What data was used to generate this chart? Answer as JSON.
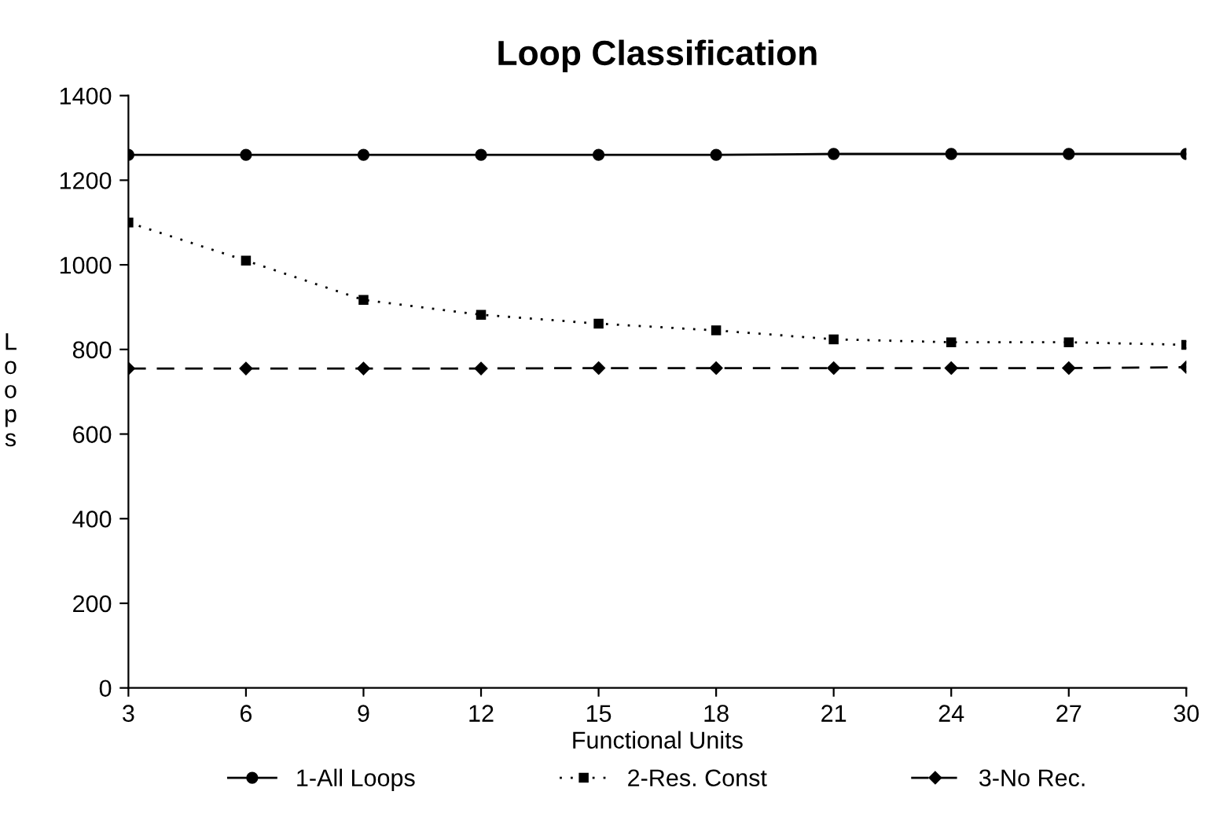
{
  "chart_data": {
    "type": "line",
    "title": "Loop Classification",
    "xlabel": "Functional Units",
    "ylabel": "Loops",
    "x": [
      3,
      6,
      9,
      12,
      15,
      18,
      21,
      24,
      27,
      30
    ],
    "series": [
      {
        "name": "1-All Loops",
        "color": "#000000",
        "marker": "circle",
        "line_style": "solid",
        "values": [
          1260,
          1260,
          1260,
          1260,
          1260,
          1260,
          1262,
          1262,
          1262,
          1262
        ]
      },
      {
        "name": "2-Res. Const",
        "color": "#000000",
        "marker": "square",
        "line_style": "dotted",
        "values": [
          1100,
          1010,
          917,
          882,
          861,
          845,
          824,
          817,
          817,
          811
        ]
      },
      {
        "name": "3-No Rec.",
        "color": "#000000",
        "marker": "diamond",
        "line_style": "dashed",
        "values": [
          755,
          755,
          755,
          755,
          756,
          756,
          756,
          756,
          756,
          758
        ]
      }
    ],
    "xlim": [
      3,
      30
    ],
    "xticks": [
      3,
      6,
      9,
      12,
      15,
      18,
      21,
      24,
      27,
      30
    ],
    "ylim": [
      0,
      1400
    ],
    "yticks": [
      0,
      200,
      400,
      600,
      800,
      1000,
      1200,
      1400
    ],
    "grid": false,
    "legend": "bottom"
  }
}
